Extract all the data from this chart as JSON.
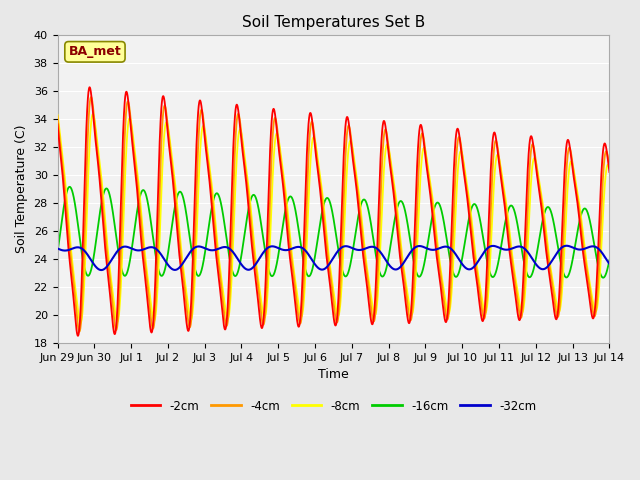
{
  "title": "Soil Temperatures Set B",
  "xlabel": "Time",
  "ylabel": "Soil Temperature (C)",
  "ylim": [
    18,
    40
  ],
  "background_color": "#e8e8e8",
  "plot_bg_color": "#f2f2f2",
  "grid_color": "#ffffff",
  "line_colors": {
    "-2cm": "#ff0000",
    "-4cm": "#ff9900",
    "-8cm": "#ffff00",
    "-16cm": "#00cc00",
    "-32cm": "#0000cc"
  },
  "legend_labels": [
    "-2cm",
    "-4cm",
    "-8cm",
    "-16cm",
    "-32cm"
  ],
  "annotation_text": "BA_met",
  "annotation_color": "#8B0000",
  "annotation_bg": "#ffff99",
  "tick_labels": [
    "Jun 29",
    "Jun 30",
    "Jul 1",
    "Jul 2",
    "Jul 3",
    "Jul 4",
    "Jul 5",
    "Jul 6",
    "Jul 7",
    "Jul 8",
    "Jul 9",
    "Jul 10",
    "Jul 11",
    "Jul 12",
    "Jul 13",
    "Jul 14"
  ],
  "tick_positions": [
    0,
    1,
    2,
    3,
    4,
    5,
    6,
    7,
    8,
    9,
    10,
    11,
    12,
    13,
    14,
    15
  ]
}
